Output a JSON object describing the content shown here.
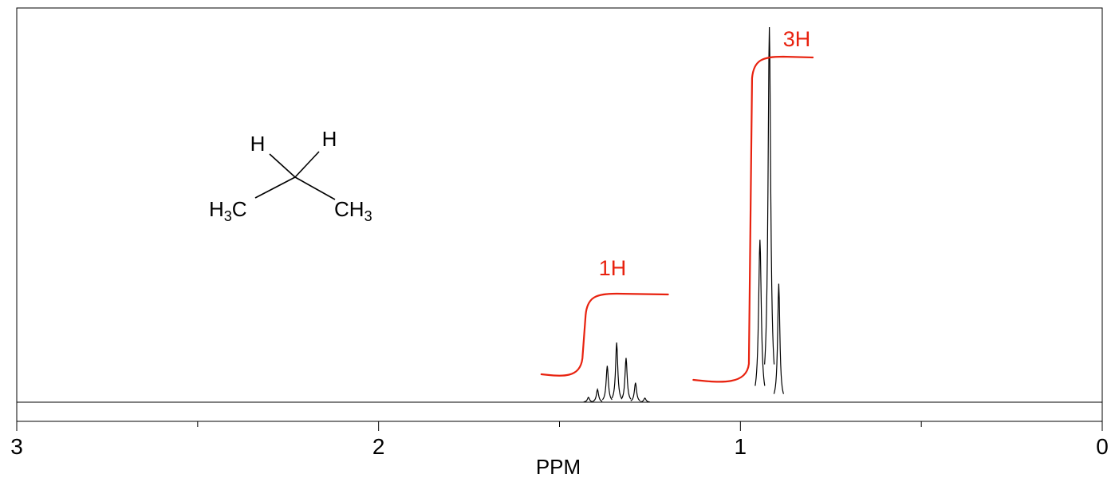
{
  "chart_data": {
    "type": "line",
    "title": "",
    "xlabel": "PPM",
    "ylabel": "",
    "xlim": [
      3,
      0
    ],
    "x_axis_reversed": true,
    "x_major_ticks": [
      3,
      2,
      1,
      0
    ],
    "x_tick_labels": [
      "3",
      "2",
      "1",
      "0"
    ],
    "x_minor_ticks": [
      2.5,
      1.5,
      0.5
    ],
    "grid": false,
    "legend": "none",
    "series": [
      {
        "peaks": [
          {
            "ppm": 1.42,
            "height": 0.013
          },
          {
            "ppm": 1.395,
            "height": 0.034
          },
          {
            "ppm": 1.368,
            "height": 0.097
          },
          {
            "ppm": 1.342,
            "height": 0.159
          },
          {
            "ppm": 1.316,
            "height": 0.118
          },
          {
            "ppm": 1.29,
            "height": 0.052
          },
          {
            "ppm": 1.264,
            "height": 0.011
          },
          {
            "ppm": 0.946,
            "height": 0.433
          },
          {
            "ppm": 0.92,
            "height": 1.0
          },
          {
            "ppm": 0.894,
            "height": 0.316
          }
        ]
      }
    ],
    "integrals": [
      {
        "label": "1H",
        "from_ppm": 1.55,
        "to_ppm": 1.2,
        "step_ppm": 1.43
      },
      {
        "label": "3H",
        "from_ppm": 1.13,
        "to_ppm": 0.8,
        "step_ppm": 0.97
      }
    ],
    "structure": {
      "atoms": [
        "H",
        "H",
        "H3C",
        "CH3"
      ],
      "atom_parts": {
        "h_left": "H",
        "h_right": "H",
        "ch3_left_main": "H",
        "ch3_left_sub": "3",
        "ch3_left_tail": "C",
        "ch3_right_main": "CH",
        "ch3_right_sub": "3"
      }
    },
    "colors": {
      "spectrum": "#000000",
      "integral": "#e8220f",
      "frame": "#000000"
    }
  }
}
